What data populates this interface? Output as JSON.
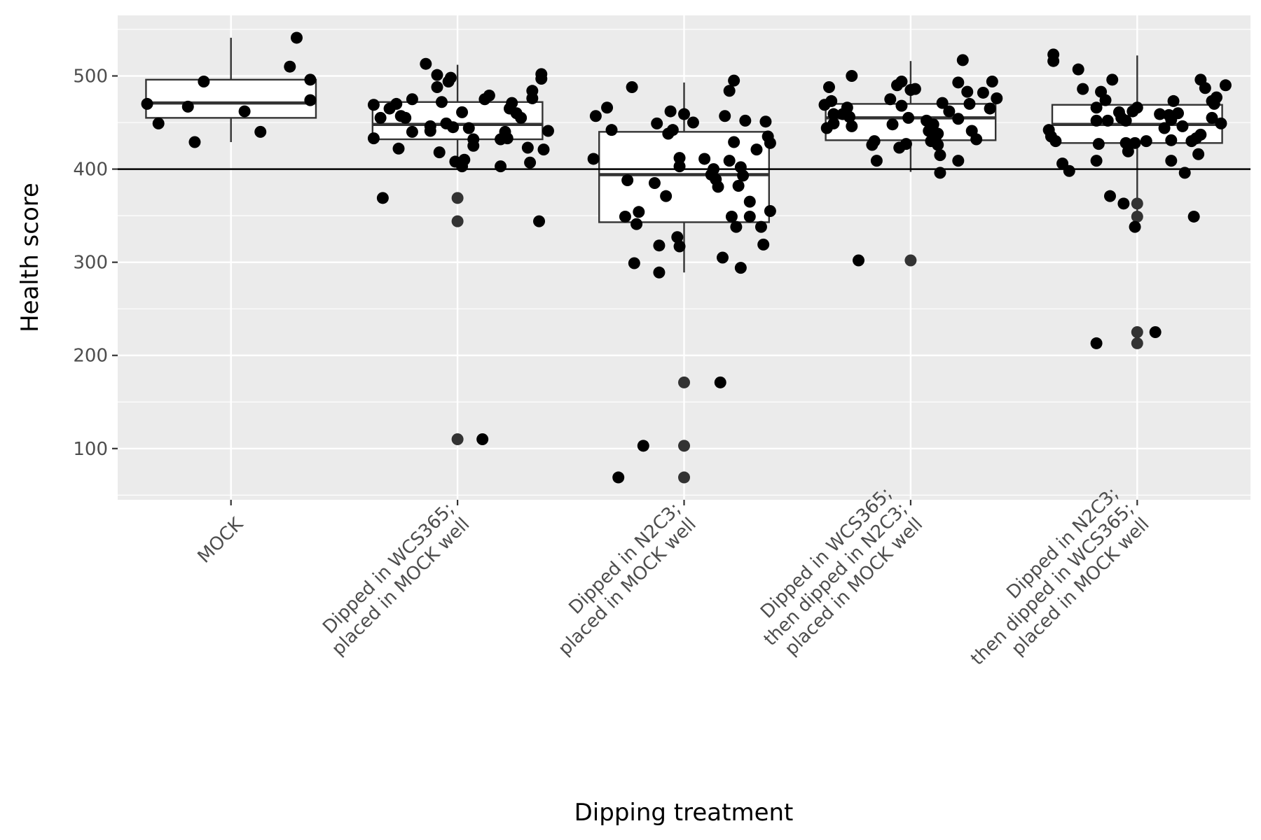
{
  "chart_data": {
    "type": "boxplot",
    "xlabel": "Dipping treatment",
    "ylabel": "Health score",
    "ylim": [
      45,
      565
    ],
    "yticks": [
      100,
      200,
      300,
      400,
      500
    ],
    "reference_line": 400,
    "grid": true,
    "legend": "none",
    "colors": {
      "panel_background": "#ebebeb",
      "grid": "#ffffff",
      "points": "#000000",
      "outliers": "#333333",
      "box_fill": "#ffffff",
      "box_line": "#333333",
      "reference_line": "#000000"
    },
    "categories": [
      [
        "MOCK"
      ],
      [
        "Dipped in WCS365;",
        "placed in MOCK well"
      ],
      [
        "Dipped in N2C3;",
        "placed in MOCK well"
      ],
      [
        "Dipped in WCS365;",
        "then dipped in N2C3;",
        "placed in MOCK well"
      ],
      [
        "Dipped in N2C3;",
        "then dipped in WCS365;",
        "placed in MOCK well"
      ]
    ],
    "boxes": [
      {
        "q1": 455,
        "median": 471,
        "q3": 496,
        "whisker_low": 429,
        "whisker_high": 541,
        "outliers": []
      },
      {
        "q1": 432,
        "median": 448,
        "q3": 472,
        "whisker_low": 402,
        "whisker_high": 512,
        "outliers": [
          369,
          344,
          110
        ]
      },
      {
        "q1": 343,
        "median": 394,
        "q3": 440,
        "whisker_low": 289,
        "whisker_high": 493,
        "outliers": [
          171,
          103,
          69
        ]
      },
      {
        "q1": 431,
        "median": 455,
        "q3": 470,
        "whisker_low": 397,
        "whisker_high": 516,
        "outliers": [
          302
        ]
      },
      {
        "q1": 428,
        "median": 448,
        "q3": 469,
        "whisker_low": 336,
        "whisker_high": 522,
        "outliers": [
          363,
          349,
          225,
          213
        ]
      }
    ],
    "points": [
      {
        "g": 0,
        "x": -0.37,
        "y": 470
      },
      {
        "g": 0,
        "x": -0.32,
        "y": 449
      },
      {
        "g": 0,
        "x": -0.19,
        "y": 467
      },
      {
        "g": 0,
        "x": -0.16,
        "y": 429
      },
      {
        "g": 0,
        "x": -0.12,
        "y": 494
      },
      {
        "g": 0,
        "x": 0.06,
        "y": 462
      },
      {
        "g": 0,
        "x": 0.13,
        "y": 440
      },
      {
        "g": 0,
        "x": 0.26,
        "y": 510
      },
      {
        "g": 0,
        "x": 0.29,
        "y": 541
      },
      {
        "g": 0,
        "x": 0.35,
        "y": 496
      },
      {
        "g": 0,
        "x": 0.35,
        "y": 474
      },
      {
        "g": 1,
        "x": -0.37,
        "y": 469
      },
      {
        "g": 1,
        "x": -0.37,
        "y": 433
      },
      {
        "g": 1,
        "x": -0.34,
        "y": 455
      },
      {
        "g": 1,
        "x": -0.33,
        "y": 369
      },
      {
        "g": 1,
        "x": -0.3,
        "y": 465
      },
      {
        "g": 1,
        "x": -0.27,
        "y": 470
      },
      {
        "g": 1,
        "x": -0.26,
        "y": 422
      },
      {
        "g": 1,
        "x": -0.25,
        "y": 457
      },
      {
        "g": 1,
        "x": -0.23,
        "y": 455
      },
      {
        "g": 1,
        "x": -0.2,
        "y": 475
      },
      {
        "g": 1,
        "x": -0.2,
        "y": 440
      },
      {
        "g": 1,
        "x": -0.14,
        "y": 513
      },
      {
        "g": 1,
        "x": -0.12,
        "y": 441
      },
      {
        "g": 1,
        "x": -0.12,
        "y": 446
      },
      {
        "g": 1,
        "x": -0.09,
        "y": 488
      },
      {
        "g": 1,
        "x": -0.09,
        "y": 501
      },
      {
        "g": 1,
        "x": -0.08,
        "y": 418
      },
      {
        "g": 1,
        "x": -0.07,
        "y": 472
      },
      {
        "g": 1,
        "x": -0.05,
        "y": 449
      },
      {
        "g": 1,
        "x": -0.04,
        "y": 494
      },
      {
        "g": 1,
        "x": -0.03,
        "y": 498
      },
      {
        "g": 1,
        "x": -0.02,
        "y": 445
      },
      {
        "g": 1,
        "x": -0.01,
        "y": 408
      },
      {
        "g": 1,
        "x": 0.02,
        "y": 461
      },
      {
        "g": 1,
        "x": 0.02,
        "y": 403
      },
      {
        "g": 1,
        "x": 0.03,
        "y": 410
      },
      {
        "g": 1,
        "x": 0.05,
        "y": 444
      },
      {
        "g": 1,
        "x": 0.07,
        "y": 432
      },
      {
        "g": 1,
        "x": 0.07,
        "y": 425
      },
      {
        "g": 1,
        "x": 0.11,
        "y": 110
      },
      {
        "g": 1,
        "x": 0.12,
        "y": 475
      },
      {
        "g": 1,
        "x": 0.14,
        "y": 479
      },
      {
        "g": 1,
        "x": 0.19,
        "y": 403
      },
      {
        "g": 1,
        "x": 0.19,
        "y": 432
      },
      {
        "g": 1,
        "x": 0.21,
        "y": 440
      },
      {
        "g": 1,
        "x": 0.22,
        "y": 433
      },
      {
        "g": 1,
        "x": 0.23,
        "y": 465
      },
      {
        "g": 1,
        "x": 0.24,
        "y": 471
      },
      {
        "g": 1,
        "x": 0.26,
        "y": 460
      },
      {
        "g": 1,
        "x": 0.28,
        "y": 455
      },
      {
        "g": 1,
        "x": 0.31,
        "y": 423
      },
      {
        "g": 1,
        "x": 0.32,
        "y": 407
      },
      {
        "g": 1,
        "x": 0.33,
        "y": 476
      },
      {
        "g": 1,
        "x": 0.33,
        "y": 484
      },
      {
        "g": 1,
        "x": 0.36,
        "y": 344
      },
      {
        "g": 1,
        "x": 0.37,
        "y": 502
      },
      {
        "g": 1,
        "x": 0.37,
        "y": 497
      },
      {
        "g": 1,
        "x": 0.38,
        "y": 421
      },
      {
        "g": 1,
        "x": 0.4,
        "y": 441
      },
      {
        "g": 2,
        "x": -0.4,
        "y": 411
      },
      {
        "g": 2,
        "x": -0.39,
        "y": 457
      },
      {
        "g": 2,
        "x": -0.34,
        "y": 466
      },
      {
        "g": 2,
        "x": -0.32,
        "y": 442
      },
      {
        "g": 2,
        "x": -0.29,
        "y": 69
      },
      {
        "g": 2,
        "x": -0.26,
        "y": 349
      },
      {
        "g": 2,
        "x": -0.25,
        "y": 388
      },
      {
        "g": 2,
        "x": -0.23,
        "y": 488
      },
      {
        "g": 2,
        "x": -0.22,
        "y": 299
      },
      {
        "g": 2,
        "x": -0.21,
        "y": 341
      },
      {
        "g": 2,
        "x": -0.2,
        "y": 354
      },
      {
        "g": 2,
        "x": -0.18,
        "y": 103
      },
      {
        "g": 2,
        "x": -0.13,
        "y": 385
      },
      {
        "g": 2,
        "x": -0.12,
        "y": 449
      },
      {
        "g": 2,
        "x": -0.11,
        "y": 289
      },
      {
        "g": 2,
        "x": -0.11,
        "y": 318
      },
      {
        "g": 2,
        "x": -0.08,
        "y": 371
      },
      {
        "g": 2,
        "x": -0.07,
        "y": 438
      },
      {
        "g": 2,
        "x": -0.06,
        "y": 462
      },
      {
        "g": 2,
        "x": -0.05,
        "y": 442
      },
      {
        "g": 2,
        "x": -0.03,
        "y": 327
      },
      {
        "g": 2,
        "x": -0.02,
        "y": 403
      },
      {
        "g": 2,
        "x": -0.02,
        "y": 317
      },
      {
        "g": 2,
        "x": -0.02,
        "y": 412
      },
      {
        "g": 2,
        "x": 0.0,
        "y": 459
      },
      {
        "g": 2,
        "x": 0.04,
        "y": 450
      },
      {
        "g": 2,
        "x": 0.09,
        "y": 411
      },
      {
        "g": 2,
        "x": 0.12,
        "y": 394
      },
      {
        "g": 2,
        "x": 0.13,
        "y": 400
      },
      {
        "g": 2,
        "x": 0.14,
        "y": 389
      },
      {
        "g": 2,
        "x": 0.15,
        "y": 381
      },
      {
        "g": 2,
        "x": 0.16,
        "y": 171
      },
      {
        "g": 2,
        "x": 0.17,
        "y": 305
      },
      {
        "g": 2,
        "x": 0.18,
        "y": 457
      },
      {
        "g": 2,
        "x": 0.2,
        "y": 409
      },
      {
        "g": 2,
        "x": 0.2,
        "y": 484
      },
      {
        "g": 2,
        "x": 0.21,
        "y": 349
      },
      {
        "g": 2,
        "x": 0.22,
        "y": 429
      },
      {
        "g": 2,
        "x": 0.22,
        "y": 495
      },
      {
        "g": 2,
        "x": 0.23,
        "y": 338
      },
      {
        "g": 2,
        "x": 0.24,
        "y": 382
      },
      {
        "g": 2,
        "x": 0.25,
        "y": 402
      },
      {
        "g": 2,
        "x": 0.25,
        "y": 294
      },
      {
        "g": 2,
        "x": 0.26,
        "y": 393
      },
      {
        "g": 2,
        "x": 0.27,
        "y": 452
      },
      {
        "g": 2,
        "x": 0.29,
        "y": 349
      },
      {
        "g": 2,
        "x": 0.29,
        "y": 365
      },
      {
        "g": 2,
        "x": 0.32,
        "y": 421
      },
      {
        "g": 2,
        "x": 0.34,
        "y": 338
      },
      {
        "g": 2,
        "x": 0.35,
        "y": 319
      },
      {
        "g": 2,
        "x": 0.36,
        "y": 451
      },
      {
        "g": 2,
        "x": 0.37,
        "y": 435
      },
      {
        "g": 2,
        "x": 0.38,
        "y": 428
      },
      {
        "g": 2,
        "x": 0.38,
        "y": 355
      },
      {
        "g": 3,
        "x": -0.38,
        "y": 469
      },
      {
        "g": 3,
        "x": -0.37,
        "y": 444
      },
      {
        "g": 3,
        "x": -0.36,
        "y": 488
      },
      {
        "g": 3,
        "x": -0.35,
        "y": 473
      },
      {
        "g": 3,
        "x": -0.34,
        "y": 459
      },
      {
        "g": 3,
        "x": -0.34,
        "y": 449
      },
      {
        "g": 3,
        "x": -0.3,
        "y": 459
      },
      {
        "g": 3,
        "x": -0.28,
        "y": 466
      },
      {
        "g": 3,
        "x": -0.27,
        "y": 456
      },
      {
        "g": 3,
        "x": -0.26,
        "y": 500
      },
      {
        "g": 3,
        "x": -0.26,
        "y": 446
      },
      {
        "g": 3,
        "x": -0.23,
        "y": 302
      },
      {
        "g": 3,
        "x": -0.17,
        "y": 426
      },
      {
        "g": 3,
        "x": -0.16,
        "y": 430
      },
      {
        "g": 3,
        "x": -0.15,
        "y": 409
      },
      {
        "g": 3,
        "x": -0.09,
        "y": 475
      },
      {
        "g": 3,
        "x": -0.08,
        "y": 448
      },
      {
        "g": 3,
        "x": -0.06,
        "y": 490
      },
      {
        "g": 3,
        "x": -0.05,
        "y": 423
      },
      {
        "g": 3,
        "x": -0.04,
        "y": 494
      },
      {
        "g": 3,
        "x": -0.04,
        "y": 468
      },
      {
        "g": 3,
        "x": -0.02,
        "y": 427
      },
      {
        "g": 3,
        "x": -0.01,
        "y": 455
      },
      {
        "g": 3,
        "x": 0.0,
        "y": 485
      },
      {
        "g": 3,
        "x": 0.02,
        "y": 486
      },
      {
        "g": 3,
        "x": 0.07,
        "y": 452
      },
      {
        "g": 3,
        "x": 0.08,
        "y": 441
      },
      {
        "g": 3,
        "x": 0.09,
        "y": 430
      },
      {
        "g": 3,
        "x": 0.1,
        "y": 448
      },
      {
        "g": 3,
        "x": 0.11,
        "y": 434
      },
      {
        "g": 3,
        "x": 0.12,
        "y": 426
      },
      {
        "g": 3,
        "x": 0.12,
        "y": 438
      },
      {
        "g": 3,
        "x": 0.13,
        "y": 415
      },
      {
        "g": 3,
        "x": 0.13,
        "y": 396
      },
      {
        "g": 3,
        "x": 0.14,
        "y": 471
      },
      {
        "g": 3,
        "x": 0.17,
        "y": 462
      },
      {
        "g": 3,
        "x": 0.21,
        "y": 493
      },
      {
        "g": 3,
        "x": 0.21,
        "y": 454
      },
      {
        "g": 3,
        "x": 0.21,
        "y": 409
      },
      {
        "g": 3,
        "x": 0.23,
        "y": 517
      },
      {
        "g": 3,
        "x": 0.25,
        "y": 483
      },
      {
        "g": 3,
        "x": 0.26,
        "y": 470
      },
      {
        "g": 3,
        "x": 0.27,
        "y": 441
      },
      {
        "g": 3,
        "x": 0.29,
        "y": 432
      },
      {
        "g": 3,
        "x": 0.32,
        "y": 482
      },
      {
        "g": 3,
        "x": 0.35,
        "y": 465
      },
      {
        "g": 3,
        "x": 0.36,
        "y": 494
      },
      {
        "g": 3,
        "x": 0.38,
        "y": 476
      },
      {
        "g": 4,
        "x": -0.39,
        "y": 442
      },
      {
        "g": 4,
        "x": -0.38,
        "y": 435
      },
      {
        "g": 4,
        "x": -0.37,
        "y": 523
      },
      {
        "g": 4,
        "x": -0.37,
        "y": 516
      },
      {
        "g": 4,
        "x": -0.36,
        "y": 430
      },
      {
        "g": 4,
        "x": -0.33,
        "y": 406
      },
      {
        "g": 4,
        "x": -0.3,
        "y": 398
      },
      {
        "g": 4,
        "x": -0.26,
        "y": 507
      },
      {
        "g": 4,
        "x": -0.24,
        "y": 486
      },
      {
        "g": 4,
        "x": -0.18,
        "y": 466
      },
      {
        "g": 4,
        "x": -0.18,
        "y": 452
      },
      {
        "g": 4,
        "x": -0.18,
        "y": 213
      },
      {
        "g": 4,
        "x": -0.18,
        "y": 409
      },
      {
        "g": 4,
        "x": -0.17,
        "y": 427
      },
      {
        "g": 4,
        "x": -0.16,
        "y": 483
      },
      {
        "g": 4,
        "x": -0.14,
        "y": 474
      },
      {
        "g": 4,
        "x": -0.13,
        "y": 452
      },
      {
        "g": 4,
        "x": -0.12,
        "y": 371
      },
      {
        "g": 4,
        "x": -0.11,
        "y": 496
      },
      {
        "g": 4,
        "x": -0.08,
        "y": 461
      },
      {
        "g": 4,
        "x": -0.07,
        "y": 455
      },
      {
        "g": 4,
        "x": -0.06,
        "y": 363
      },
      {
        "g": 4,
        "x": -0.05,
        "y": 428
      },
      {
        "g": 4,
        "x": -0.05,
        "y": 452
      },
      {
        "g": 4,
        "x": -0.04,
        "y": 419
      },
      {
        "g": 4,
        "x": -0.02,
        "y": 462
      },
      {
        "g": 4,
        "x": -0.01,
        "y": 338
      },
      {
        "g": 4,
        "x": -0.01,
        "y": 428
      },
      {
        "g": 4,
        "x": 0.0,
        "y": 466
      },
      {
        "g": 4,
        "x": 0.04,
        "y": 430
      },
      {
        "g": 4,
        "x": 0.08,
        "y": 225
      },
      {
        "g": 4,
        "x": 0.1,
        "y": 459
      },
      {
        "g": 4,
        "x": 0.12,
        "y": 444
      },
      {
        "g": 4,
        "x": 0.14,
        "y": 458
      },
      {
        "g": 4,
        "x": 0.15,
        "y": 453
      },
      {
        "g": 4,
        "x": 0.15,
        "y": 431
      },
      {
        "g": 4,
        "x": 0.15,
        "y": 409
      },
      {
        "g": 4,
        "x": 0.16,
        "y": 473
      },
      {
        "g": 4,
        "x": 0.18,
        "y": 460
      },
      {
        "g": 4,
        "x": 0.2,
        "y": 446
      },
      {
        "g": 4,
        "x": 0.21,
        "y": 396
      },
      {
        "g": 4,
        "x": 0.24,
        "y": 430
      },
      {
        "g": 4,
        "x": 0.25,
        "y": 349
      },
      {
        "g": 4,
        "x": 0.26,
        "y": 433
      },
      {
        "g": 4,
        "x": 0.27,
        "y": 416
      },
      {
        "g": 4,
        "x": 0.28,
        "y": 437
      },
      {
        "g": 4,
        "x": 0.28,
        "y": 496
      },
      {
        "g": 4,
        "x": 0.3,
        "y": 487
      },
      {
        "g": 4,
        "x": 0.33,
        "y": 455
      },
      {
        "g": 4,
        "x": 0.33,
        "y": 473
      },
      {
        "g": 4,
        "x": 0.34,
        "y": 470
      },
      {
        "g": 4,
        "x": 0.35,
        "y": 477
      },
      {
        "g": 4,
        "x": 0.37,
        "y": 449
      },
      {
        "g": 4,
        "x": 0.39,
        "y": 490
      }
    ]
  }
}
